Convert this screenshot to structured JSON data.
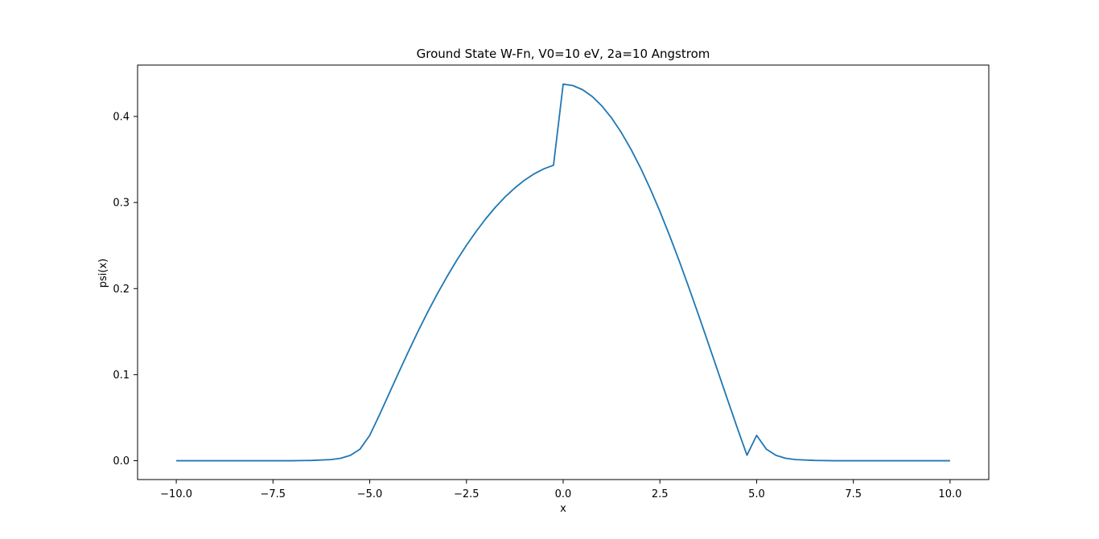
{
  "chart_data": {
    "type": "line",
    "title": "Ground State W-Fn, V0=10 eV, 2a=10 Angstrom",
    "xlabel": "x",
    "ylabel": "psi(x)",
    "xlim": [
      -11.0,
      11.0
    ],
    "ylim": [
      -0.0219,
      0.4597
    ],
    "grid": false,
    "x_ticks": [
      -10.0,
      -7.5,
      -5.0,
      -2.5,
      0.0,
      2.5,
      5.0,
      7.5,
      10.0
    ],
    "x_tick_labels": [
      "−10.0",
      "−7.5",
      "−5.0",
      "−2.5",
      "0.0",
      "2.5",
      "5.0",
      "7.5",
      "10.0"
    ],
    "y_ticks": [
      0.0,
      0.1,
      0.2,
      0.3,
      0.4
    ],
    "y_tick_labels": [
      "0.0",
      "0.1",
      "0.2",
      "0.3",
      "0.4"
    ],
    "series": [
      {
        "color": "#1f77b4",
        "x": [
          -10.0,
          -9.0,
          -8.0,
          -7.0,
          -6.5,
          -6.0,
          -5.75,
          -5.5,
          -5.25,
          -5.0,
          -4.75,
          -4.5,
          -4.25,
          -4.0,
          -3.75,
          -3.5,
          -3.25,
          -3.0,
          -2.75,
          -2.5,
          -2.25,
          -2.0,
          -1.75,
          -1.5,
          -1.25,
          -1.0,
          -0.75,
          -0.5,
          -0.25,
          0.0,
          0.25,
          0.5,
          0.75,
          1.0,
          1.25,
          1.5,
          1.75,
          2.0,
          2.25,
          2.5,
          2.75,
          3.0,
          3.25,
          3.5,
          3.75,
          4.0,
          4.25,
          4.5,
          4.75,
          5.0,
          5.25,
          5.5,
          5.75,
          6.0,
          6.5,
          7.0,
          8.0,
          9.0,
          10.0
        ],
        "y": [
          0.0,
          0.0,
          0.0,
          0.0,
          0.0003,
          0.0013,
          0.0028,
          0.0062,
          0.0135,
          0.0294,
          0.0531,
          0.0778,
          0.1026,
          0.1269,
          0.1504,
          0.1729,
          0.1941,
          0.2141,
          0.2329,
          0.2503,
          0.2664,
          0.2812,
          0.2946,
          0.3065,
          0.3169,
          0.3259,
          0.3333,
          0.3391,
          0.3433,
          0.4375,
          0.4359,
          0.4311,
          0.4232,
          0.4122,
          0.3983,
          0.3815,
          0.3621,
          0.3402,
          0.316,
          0.2897,
          0.2616,
          0.232,
          0.201,
          0.1691,
          0.1365,
          0.1036,
          0.0707,
          0.0381,
          0.0064,
          0.0294,
          0.0135,
          0.0062,
          0.0028,
          0.0013,
          0.0003,
          0.0,
          0.0,
          0.0,
          0.0
        ]
      }
    ]
  }
}
